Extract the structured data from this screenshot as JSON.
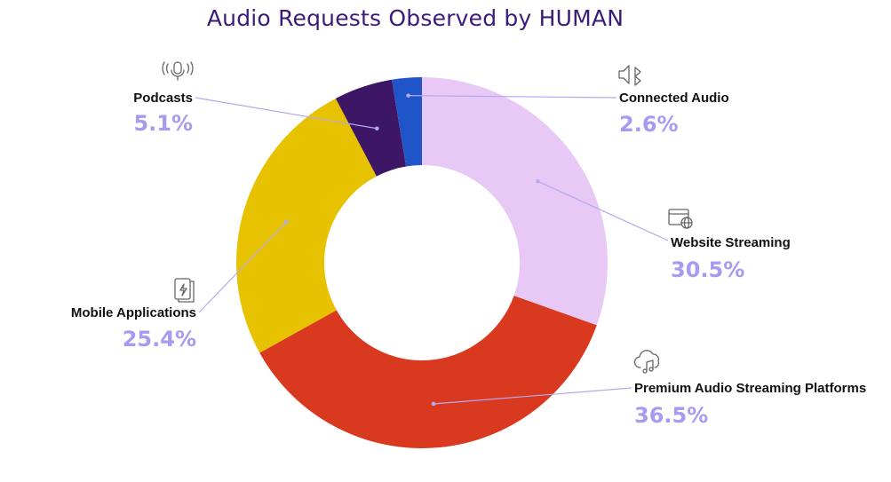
{
  "chart_data": {
    "type": "pie",
    "title": "Audio Requests Observed by HUMAN",
    "donut": true,
    "slices": [
      {
        "label": "Website Streaming",
        "value": 30.5,
        "value_label": "30.5%",
        "color": "#e8c8f4",
        "icon": "browser-globe-icon"
      },
      {
        "label": "Premium Audio Streaming Platforms",
        "value": 36.5,
        "value_label": "36.5%",
        "color": "#d9391f",
        "icon": "cloud-music-icon"
      },
      {
        "label": "Mobile Applications",
        "value": 25.4,
        "value_label": "25.4%",
        "color": "#e7c200",
        "icon": "mobile-app-icon"
      },
      {
        "label": "Podcasts",
        "value": 5.1,
        "value_label": "5.1%",
        "color": "#3d1766",
        "icon": "microphone-icon"
      },
      {
        "label": "Connected Audio",
        "value": 2.6,
        "value_label": "2.6%",
        "color": "#1f55c8",
        "icon": "bluetooth-speaker-icon"
      }
    ],
    "start_angle_deg": 0,
    "direction": "clockwise"
  },
  "colors": {
    "title": "#3b1a7a",
    "percent": "#a79af0",
    "leader": "#b4a9f2"
  }
}
